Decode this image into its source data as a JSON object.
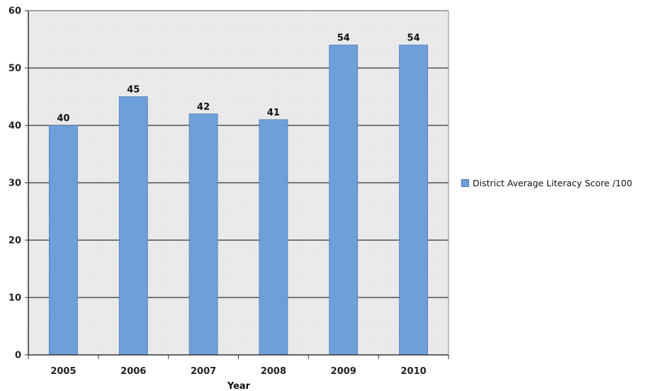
{
  "chart_data": {
    "type": "bar",
    "categories": [
      "2005",
      "2006",
      "2007",
      "2008",
      "2009",
      "2010"
    ],
    "series": [
      {
        "name": "District Average Literacy Score /100",
        "values": [
          40,
          45,
          42,
          41,
          54,
          54
        ]
      }
    ],
    "xlabel": "Year",
    "ylabel": "",
    "ylim": [
      0,
      60
    ],
    "yticks": [
      "0",
      "10",
      "20",
      "30",
      "40",
      "50",
      "60"
    ],
    "data_labels": [
      "40",
      "45",
      "42",
      "41",
      "54",
      "54"
    ],
    "grid": true,
    "legend_position": "right",
    "colors": {
      "bar": "#6f9fd8",
      "bar_edge": "#4a7bbb",
      "plot_bg": "#e9e9e9",
      "grid": "#333333"
    }
  }
}
